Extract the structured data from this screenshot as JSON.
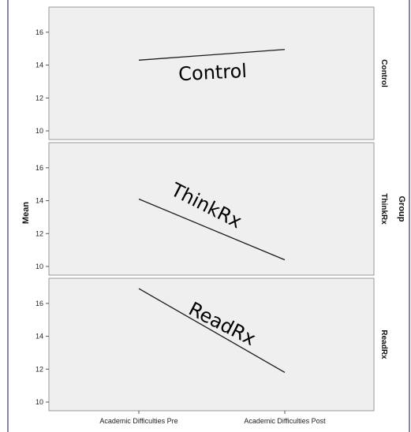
{
  "chart_data": {
    "type": "line",
    "x": [
      "Academic Difficulties Pre",
      "Academic Difficulties Post"
    ],
    "ylabel": "Mean",
    "facet_label": "Group",
    "ylim": [
      10,
      17
    ],
    "yticks": [
      10,
      12,
      14,
      16
    ],
    "panels": [
      {
        "name": "Control",
        "annotation": "Control",
        "values": [
          14.3,
          14.95
        ]
      },
      {
        "name": "ThinkRx",
        "annotation": "ThinkRx",
        "values": [
          14.1,
          10.4
        ]
      },
      {
        "name": "ReadRx",
        "annotation": "ReadRx",
        "values": [
          16.9,
          11.8
        ]
      }
    ]
  }
}
